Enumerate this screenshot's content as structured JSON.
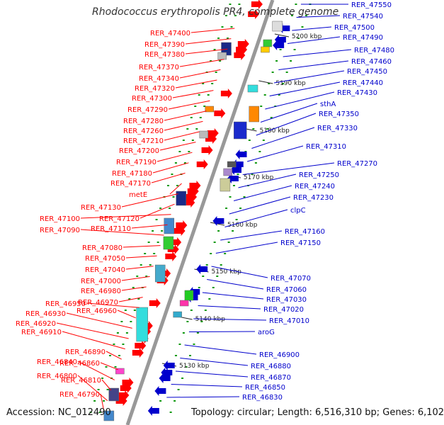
{
  "title": "Rhodococcus erythropolis PR4, complete genome",
  "footer": {
    "accession": "Accession: NC_012490",
    "topology": "Topology: circular; Length: 6,516,310 bp; Genes: 6,102"
  },
  "colors": {
    "forward": "#ff0000",
    "reverse": "#0000cc",
    "backbone": "#999999",
    "tick": "#119911"
  },
  "kbp_marks": [
    "5200 kbp",
    "5190 kbp",
    "5180 kbp",
    "5170 kbp",
    "5160 kbp",
    "5150 kbp",
    "5140 kbp",
    "5130 kbp"
  ],
  "genes_left": [
    "RER_47400",
    "RER_47390",
    "RER_47380",
    "RER_47370",
    "RER_47340",
    "RER_47320",
    "RER_47300",
    "RER_47290",
    "RER_47280",
    "RER_47260",
    "RER_47210",
    "RER_47200",
    "RER_47190",
    "RER_47180",
    "RER_47170",
    "metE",
    "RER_47130",
    "RER_47120",
    "RER_47100",
    "RER_47110",
    "RER_47090",
    "RER_47080",
    "RER_47050",
    "RER_47040",
    "RER_47000",
    "RER_46980",
    "RER_46970",
    "RER_46950",
    "RER_46960",
    "RER_46930",
    "RER_46920",
    "RER_46910",
    "RER_46890",
    "RER_46860",
    "RER_46840",
    "RER_46810",
    "RER_46800",
    "RER_46790"
  ],
  "genes_right": [
    "RER_47550",
    "RER_47540",
    "RER_47500",
    "RER_47490",
    "RER_47480",
    "RER_47460",
    "RER_47450",
    "RER_47440",
    "RER_47430",
    "sthA",
    "RER_47350",
    "RER_47330",
    "RER_47310",
    "RER_47270",
    "RER_47250",
    "RER_47240",
    "RER_47230",
    "clpC",
    "RER_47160",
    "RER_47150",
    "RER_47070",
    "RER_47060",
    "RER_47030",
    "RER_47020",
    "RER_47010",
    "aroG",
    "RER_46900",
    "RER_46880",
    "RER_46870",
    "RER_46850",
    "RER_46830"
  ]
}
